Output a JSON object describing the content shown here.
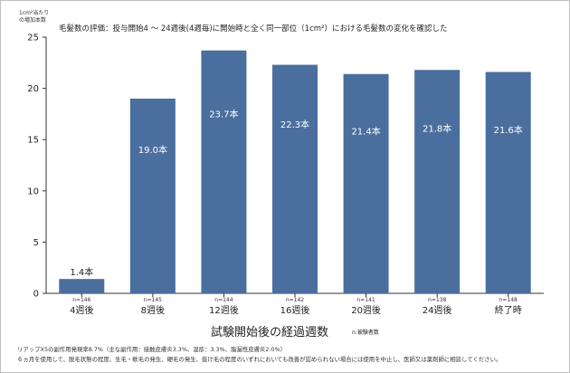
{
  "chart_data": {
    "type": "bar",
    "title": "毛髪数の評価：投与開始4 〜 24週後(4週毎)に開始時と全く同一部位（1cm²）における毛髪数の変化を確認した",
    "ylabel": "1cm²当たり\nの増加本数",
    "xlabel": "試験開始後の経過週数",
    "xlabel_note": "n:被験者数",
    "ylim": [
      0,
      25
    ],
    "yticks": [
      0,
      5,
      10,
      15,
      20,
      25
    ],
    "grid": false,
    "categories": [
      "4週後",
      "8週後",
      "12週後",
      "16週後",
      "20週後",
      "24週後",
      "終了時"
    ],
    "values": [
      1.4,
      19.0,
      23.7,
      22.3,
      21.4,
      21.8,
      21.6
    ],
    "data_labels": [
      "1.4本",
      "19.0本",
      "23.7本",
      "22.3本",
      "21.4本",
      "21.8本",
      "21.6本"
    ],
    "n_labels": [
      "n=146",
      "n=145",
      "n=144",
      "n=142",
      "n=141",
      "n=138",
      "n=148"
    ],
    "bar_color": "#4a6f9e",
    "label_color_inside": "#ffffff",
    "label_color_outside": "#222222"
  },
  "footnotes": [
    "リアップX5の副作用発現率8.7%（主な副作用：接触皮膚炎3.3%、湿疹：3.3%、脂漏性皮膚炎2.0%）",
    "６ヵ月を使用して、脱毛状態の程度、生毛・軟毛の発生、硬毛の発生、抜け毛の程度のいずれにおいても改善が認められない場合には使用を中止し、医師又は薬剤師に相談してください。"
  ]
}
